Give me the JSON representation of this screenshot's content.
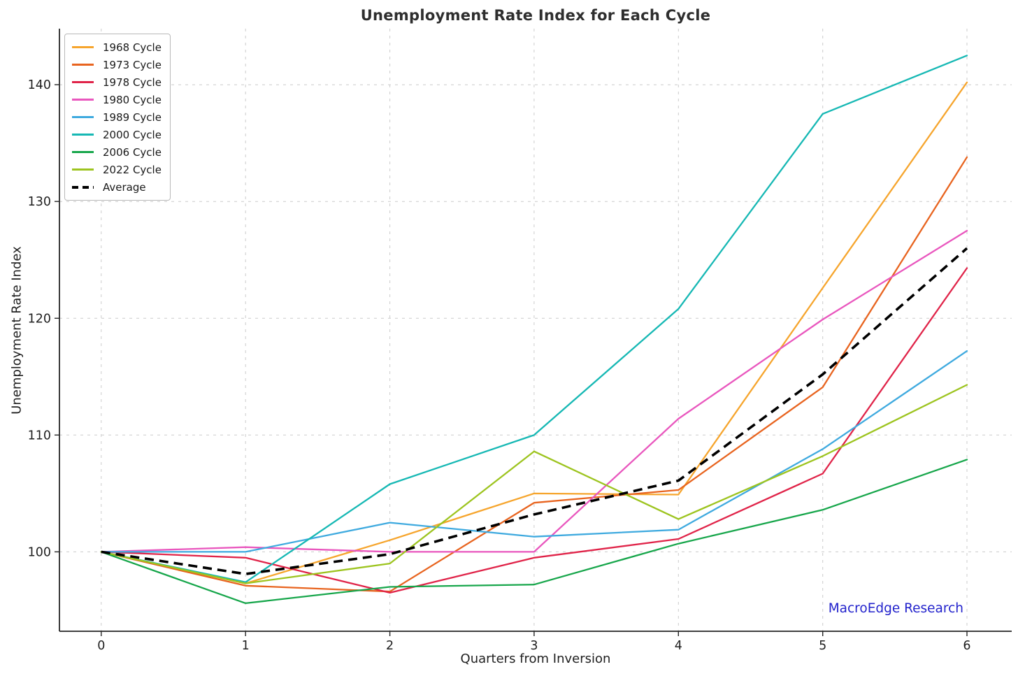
{
  "watermark": {
    "text": "MacroEdge Research",
    "color": "#2222CC"
  },
  "chart_data": {
    "type": "line",
    "title": "Unemployment Rate Index for Each Cycle",
    "xlabel": "Quarters from Inversion",
    "ylabel": "Unemployment Rate Index",
    "x": [
      0,
      1,
      2,
      3,
      4,
      5,
      6
    ],
    "xticks": [
      0,
      1,
      2,
      3,
      4,
      5,
      6
    ],
    "yticks": [
      100,
      110,
      120,
      130,
      140
    ],
    "xlim": [
      -0.29,
      6.31
    ],
    "ylim": [
      93.2,
      144.8
    ],
    "grid": true,
    "grid_style": "dashed",
    "legend_position": "upper-left",
    "series": [
      {
        "name": "1968 Cycle",
        "color": "#F6A52D",
        "values": [
          100,
          97.3,
          101.0,
          105.0,
          104.9,
          122.6,
          140.2
        ]
      },
      {
        "name": "1973 Cycle",
        "color": "#E8641F",
        "values": [
          100,
          97.1,
          96.6,
          104.2,
          105.3,
          114.1,
          133.8
        ]
      },
      {
        "name": "1978 Cycle",
        "color": "#E02449",
        "values": [
          100,
          99.5,
          96.5,
          99.5,
          101.1,
          106.7,
          124.3
        ]
      },
      {
        "name": "1980 Cycle",
        "color": "#E957BE",
        "values": [
          100,
          100.4,
          100.0,
          100.0,
          111.4,
          119.9,
          127.5
        ]
      },
      {
        "name": "1989 Cycle",
        "color": "#3FAADF",
        "values": [
          100,
          100.0,
          102.5,
          101.3,
          101.9,
          108.8,
          117.2
        ]
      },
      {
        "name": "2000 Cycle",
        "color": "#16B8B4",
        "values": [
          100,
          97.4,
          105.8,
          110.0,
          120.8,
          137.5,
          142.5
        ]
      },
      {
        "name": "2006 Cycle",
        "color": "#17A64B",
        "values": [
          100,
          95.6,
          97.0,
          97.2,
          100.7,
          103.6,
          107.9
        ]
      },
      {
        "name": "2022 Cycle",
        "color": "#9DC41F",
        "values": [
          100,
          97.3,
          99.0,
          108.6,
          102.8,
          108.2,
          114.3
        ]
      }
    ],
    "average": {
      "name": "Average",
      "color": "#000000",
      "dashed": true,
      "values": [
        100,
        98.1,
        99.8,
        103.2,
        106.1,
        115.2,
        126.0
      ]
    }
  }
}
